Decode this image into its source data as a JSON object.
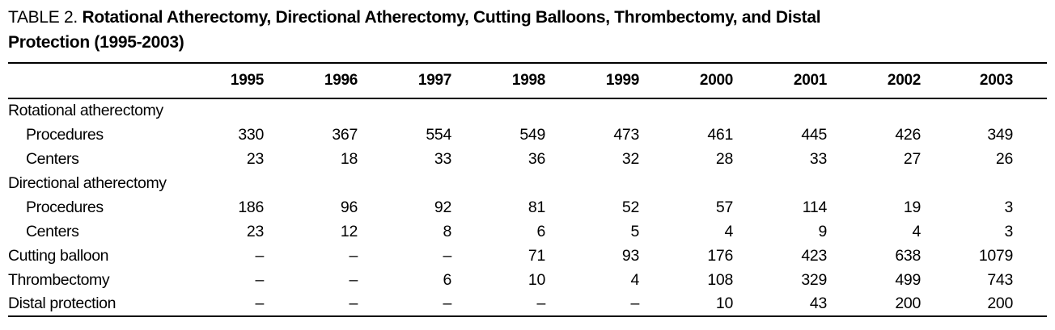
{
  "page": {
    "background": "#ffffff",
    "text_color": "#000000",
    "rule_color": "#000000"
  },
  "caption": {
    "label": "TABLE 2.",
    "title_line_1": "Rotational Atherectomy, Directional Atherectomy, Cutting Balloons, Thrombectomy, and Distal",
    "title_line_2": "Protection (1995-2003)"
  },
  "table": {
    "columns": [
      "",
      "1995",
      "1996",
      "1997",
      "1998",
      "1999",
      "2000",
      "2001",
      "2002",
      "2003"
    ],
    "missing_value_marker": "–",
    "rows": [
      {
        "label": "Rotational atherectomy",
        "indent": false,
        "values": []
      },
      {
        "label": "Procedures",
        "indent": true,
        "values": [
          330,
          367,
          554,
          549,
          473,
          461,
          445,
          426,
          349
        ]
      },
      {
        "label": "Centers",
        "indent": true,
        "values": [
          23,
          18,
          33,
          36,
          32,
          28,
          33,
          27,
          26
        ]
      },
      {
        "label": "Directional atherectomy",
        "indent": false,
        "values": []
      },
      {
        "label": "Procedures",
        "indent": true,
        "values": [
          186,
          96,
          92,
          81,
          52,
          57,
          114,
          19,
          3
        ]
      },
      {
        "label": "Centers",
        "indent": true,
        "values": [
          23,
          12,
          8,
          6,
          5,
          4,
          9,
          4,
          3
        ]
      },
      {
        "label": "Cutting balloon",
        "indent": false,
        "values": [
          "–",
          "–",
          "–",
          71,
          93,
          176,
          423,
          638,
          1079
        ]
      },
      {
        "label": "Thrombectomy",
        "indent": false,
        "values": [
          "–",
          "–",
          6,
          10,
          4,
          108,
          329,
          499,
          743
        ]
      },
      {
        "label": "Distal protection",
        "indent": false,
        "values": [
          "–",
          "–",
          "–",
          "–",
          "–",
          10,
          43,
          200,
          200
        ]
      }
    ]
  }
}
